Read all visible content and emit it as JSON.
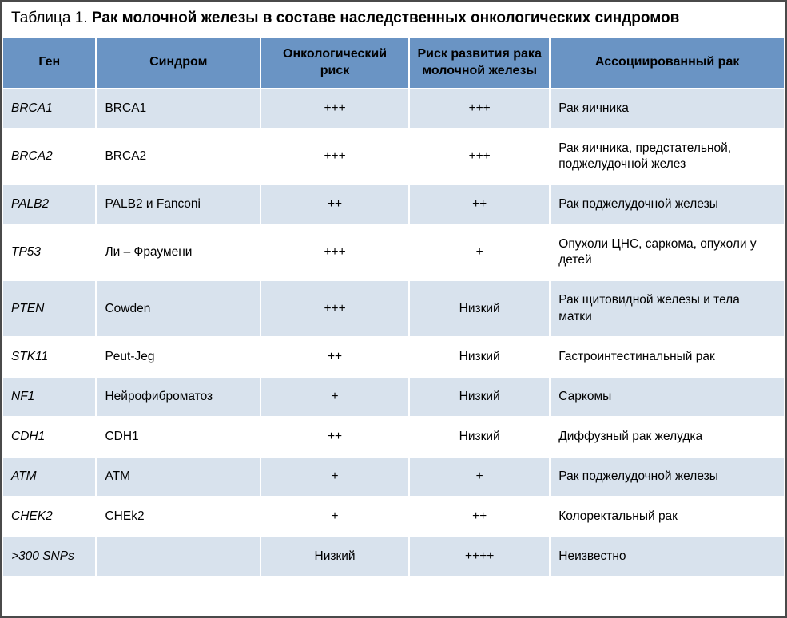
{
  "caption": {
    "label": "Таблица 1. ",
    "title": "Рак молочной железы в составе наследственных онкологических синдромов"
  },
  "columns": [
    "Ген",
    "Синдром",
    "Онкологический риск",
    "Риск развития рака молочной железы",
    "Ассоциированный рак"
  ],
  "colors": {
    "header_bg": "#6a94c4",
    "row_odd_bg": "#d8e2ed",
    "row_even_bg": "#ffffff",
    "border": "#ffffff",
    "outer_border": "#4a4a4a",
    "text": "#000000"
  },
  "column_widths_pct": [
    12,
    21,
    19,
    18,
    30
  ],
  "font": {
    "caption_size": 19,
    "header_size": 16,
    "cell_size": 15.5
  },
  "rows": [
    {
      "gene": "BRCA1",
      "syndrome": "BRCA1",
      "onco_risk": "+++",
      "breast_risk": "+++",
      "assoc": "Рак яичника"
    },
    {
      "gene": "BRCA2",
      "syndrome": "BRCA2",
      "onco_risk": "+++",
      "breast_risk": "+++",
      "assoc": "Рак яичника, предстательной, поджелудочной желез"
    },
    {
      "gene": "PALB2",
      "syndrome": "PALB2 и Fanconi",
      "onco_risk": "++",
      "breast_risk": "++",
      "assoc": "Рак поджелудочной железы"
    },
    {
      "gene": "TP53",
      "syndrome": "Ли – Фраумени",
      "onco_risk": "+++",
      "breast_risk": "+",
      "assoc": "Опухоли ЦНС, саркома, опухоли у детей"
    },
    {
      "gene": "PTEN",
      "syndrome": "Cowden",
      "onco_risk": "+++",
      "breast_risk": "Низкий",
      "assoc": "Рак щитовидной железы и тела матки"
    },
    {
      "gene": "STK11",
      "syndrome": "Peut-Jeg",
      "onco_risk": "++",
      "breast_risk": "Низкий",
      "assoc": "Гастроинтестинальный рак"
    },
    {
      "gene": "NF1",
      "syndrome": "Нейрофиброматоз",
      "onco_risk": "+",
      "breast_risk": "Низкий",
      "assoc": "Саркомы"
    },
    {
      "gene": "CDH1",
      "syndrome": "CDH1",
      "onco_risk": "++",
      "breast_risk": "Низкий",
      "assoc": "Диффузный рак желудка"
    },
    {
      "gene": "ATM",
      "syndrome": "ATM",
      "onco_risk": "+",
      "breast_risk": "+",
      "assoc": "Рак поджелудочной железы"
    },
    {
      "gene": "CHEK2",
      "syndrome": "CHEk2",
      "onco_risk": "+",
      "breast_risk": "++",
      "assoc": "Колоректальный рак"
    },
    {
      "gene": ">300 SNPs",
      "syndrome": "",
      "onco_risk": "Низкий",
      "breast_risk": "++++",
      "assoc": "Неизвестно"
    }
  ]
}
